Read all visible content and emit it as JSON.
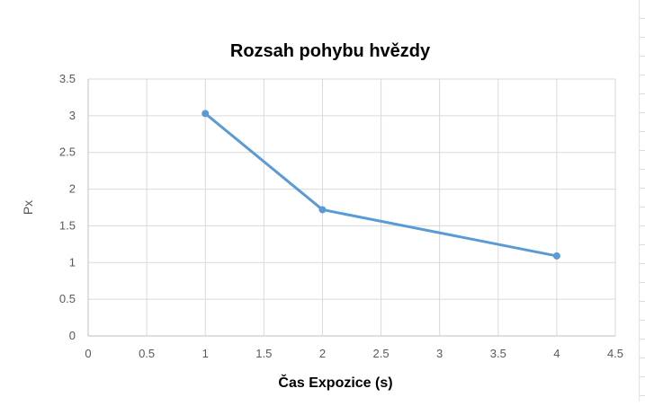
{
  "chart_data": {
    "type": "scatter",
    "title": "Rozsah pohybu hvězdy",
    "xlabel": "Čas Expozice (s)",
    "ylabel": "Px",
    "xlim": [
      0,
      4.5
    ],
    "ylim": [
      0,
      3.5
    ],
    "x_ticks": [
      0,
      0.5,
      1,
      1.5,
      2,
      2.5,
      3,
      3.5,
      4,
      4.5
    ],
    "y_ticks": [
      0,
      0.5,
      1,
      1.5,
      2,
      2.5,
      3,
      3.5
    ],
    "x_tick_labels": [
      "0",
      "0.5",
      "1",
      "1.5",
      "2",
      "2.5",
      "3",
      "3.5",
      "4",
      "4.5"
    ],
    "y_tick_labels": [
      "0",
      "0.5",
      "1",
      "1.5",
      "2",
      "2.5",
      "3",
      "3.5"
    ],
    "grid": true,
    "legend": "none",
    "series": [
      {
        "x": [
          1,
          2,
          4
        ],
        "y": [
          3.03,
          1.72,
          1.09
        ],
        "color": "#5b9bd5",
        "style": "line-with-markers"
      }
    ]
  }
}
